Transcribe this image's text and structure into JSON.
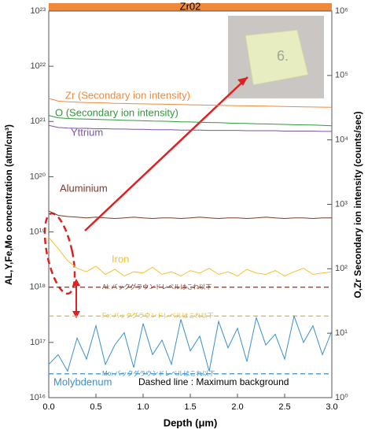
{
  "chart_data": {
    "type": "line",
    "banner": "Zr02",
    "ylabel": "AL,Y,Fe,Mo concentration (atm/cm³)",
    "y2label": "O,Zr Secondary ion intensity (counts/sec)",
    "xlabel": "Depth (μm)",
    "log_y": true,
    "log_y2": true,
    "xlim": [
      0,
      3
    ],
    "ylim": [
      1e+16,
      1e+23
    ],
    "y2lim": [
      1,
      1000000.0
    ],
    "xticks": [
      {
        "value": 0,
        "label": "0.0"
      },
      0.5,
      {
        "value": 1,
        "label": "1.0"
      },
      1.5,
      {
        "value": 2,
        "label": "2.0"
      },
      2.5,
      {
        "value": 3,
        "label": "3.0"
      }
    ],
    "yticks": [
      {
        "value": 1e+16,
        "label": "10¹⁶"
      },
      {
        "value": 1e+17,
        "label": "10¹⁷"
      },
      {
        "value": 1e+18,
        "label": "10¹⁸"
      },
      {
        "value": 1e+19,
        "label": "10¹⁹"
      },
      {
        "value": 1e+20,
        "label": "10²⁰"
      },
      {
        "value": 1e+21,
        "label": "10²¹"
      },
      {
        "value": 1e+22,
        "label": "10²²"
      },
      {
        "value": 1e+23,
        "label": "10²³"
      }
    ],
    "y2ticks": [
      {
        "value": 1,
        "label": "10⁰"
      },
      {
        "value": 10,
        "label": "10¹"
      },
      {
        "value": 100,
        "label": "10²"
      },
      {
        "value": 1000,
        "label": "10³"
      },
      {
        "value": 10000,
        "label": "10⁴"
      },
      {
        "value": 100000,
        "label": "10⁵"
      },
      {
        "value": 1000000,
        "label": "10⁶"
      }
    ],
    "x": [
      0,
      0.1,
      0.2,
      0.3,
      0.4,
      0.5,
      0.6,
      0.7,
      0.8,
      0.9,
      1.0,
      1.1,
      1.2,
      1.3,
      1.4,
      1.5,
      1.6,
      1.7,
      1.8,
      1.9,
      2.0,
      2.1,
      2.2,
      2.3,
      2.4,
      2.5,
      2.6,
      2.7,
      2.8,
      2.9,
      3.0
    ],
    "series": [
      {
        "name": "Zr (Secondary ion intensity)",
        "color": "#f0883a",
        "axis": "y2",
        "values": [
          44000,
          40000,
          39000,
          38500,
          38000,
          37800,
          37500,
          37000,
          36800,
          36500,
          36200,
          36000,
          35800,
          35500,
          35300,
          35000,
          34800,
          34600,
          34400,
          34200,
          34000,
          33800,
          33600,
          33400,
          33200,
          33000,
          32800,
          32600,
          32400,
          32200,
          32000
        ]
      },
      {
        "name": "O (Secondary ion intensity)",
        "color": "#2e9a3a",
        "axis": "y2",
        "values": [
          24000,
          22000,
          21500,
          21200,
          21000,
          20800,
          20600,
          20400,
          20200,
          20000,
          19800,
          19600,
          19500,
          19300,
          19100,
          19000,
          18800,
          18600,
          18500,
          18300,
          18100,
          18000,
          17800,
          17700,
          17500,
          17400,
          17200,
          17100,
          17000,
          16800,
          16600
        ]
      },
      {
        "name": "Yttrium",
        "color": "#7b55a6",
        "values": [
          8.5e+20,
          7.8e+20,
          7.6e+20,
          7.5e+20,
          7.5e+20,
          7.4e+20,
          7.4e+20,
          7.3e+20,
          7.3e+20,
          7.2e+20,
          7.2e+20,
          7.1e+20,
          7.1e+20,
          7.1e+20,
          7e+20,
          7e+20,
          7e+20,
          6.9e+20,
          6.9e+20,
          6.9e+20,
          6.9e+20,
          6.8e+20,
          6.8e+20,
          6.8e+20,
          6.8e+20,
          6.7e+20,
          6.7e+20,
          6.7e+20,
          6.7e+20,
          6.6e+20,
          6.6e+20
        ]
      },
      {
        "name": "Aluminium",
        "color": "#7a3a2a",
        "values": [
          2.4e+19,
          2e+19,
          1.9e+19,
          1.85e+19,
          1.8e+19,
          1.85e+19,
          1.8e+19,
          1.75e+19,
          1.8e+19,
          1.85e+19,
          1.8e+19,
          1.75e+19,
          1.8e+19,
          1.8e+19,
          1.75e+19,
          1.8e+19,
          1.85e+19,
          1.8e+19,
          1.75e+19,
          1.8e+19,
          1.8e+19,
          1.75e+19,
          1.8e+19,
          1.85e+19,
          1.8e+19,
          1.75e+19,
          1.8e+19,
          1.8e+19,
          1.75e+19,
          1.8e+19,
          1.8e+19
        ]
      },
      {
        "name": "Iron",
        "color": "#f5c030",
        "values": [
          8e+18,
          5e+18,
          3e+18,
          2.2e+18,
          1.9e+18,
          2.4e+18,
          1.7e+18,
          2.1e+18,
          1.6e+18,
          1.9e+18,
          1.8e+18,
          2.3e+18,
          1.7e+18,
          1.9e+18,
          1.6e+18,
          2e+18,
          1.8e+18,
          2.2e+18,
          1.7e+18,
          1.9e+18,
          1.6e+18,
          2.1e+18,
          1.8e+18,
          1.7e+18,
          2e+18,
          1.6e+18,
          1.9e+18,
          2.2e+18,
          1.7e+18,
          1.8e+18,
          1.9e+18
        ]
      },
      {
        "name": "Molybdenum",
        "color": "#3a8fd0",
        "values": [
          4e+16,
          6e+16,
          3e+16,
          1.2e+17,
          5e+16,
          2e+17,
          4e+16,
          9e+16,
          1.5e+17,
          3.5e+16,
          2.2e+17,
          6e+16,
          1.1e+17,
          4e+16,
          2.6e+17,
          7e+16,
          1.3e+17,
          3e+16,
          2.4e+17,
          8e+16,
          1.8e+17,
          4.5e+16,
          2.8e+17,
          9e+16,
          1.4e+17,
          5e+16,
          3e+17,
          1e+17,
          2e+17,
          6e+16,
          1.6e+17
        ]
      }
    ],
    "background_levels": [
      {
        "label": "Al: バックグラウンドレベルはこれ以下",
        "color": "#7a3a2a",
        "value": 1e+18
      },
      {
        "label": "Fe: バックグラウンドレベルはこれ以下",
        "color": "#e8b820",
        "value": 3e+17
      },
      {
        "label": "Mo: バックグラウンドレベルはこれ以下",
        "color": "#3a8fd0",
        "value": 2.7e+16
      }
    ],
    "note": "Dashed line : Maximum background"
  }
}
